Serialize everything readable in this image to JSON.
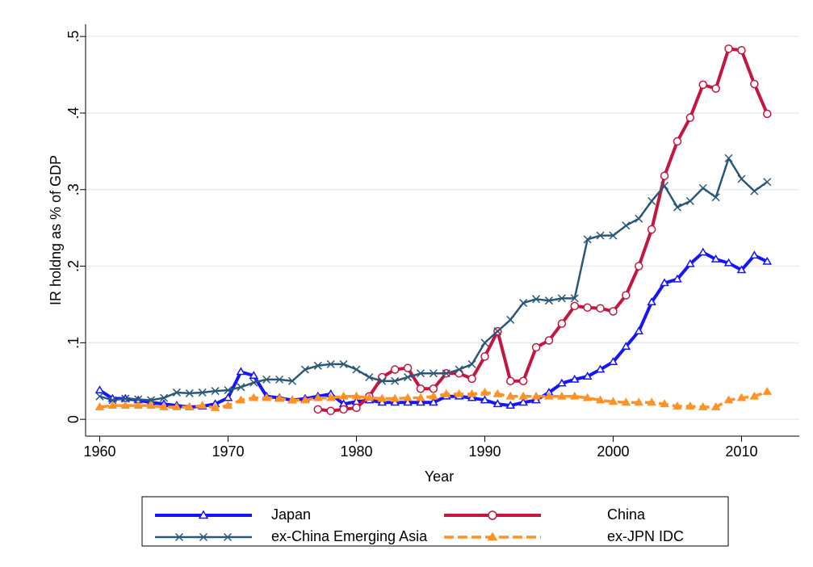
{
  "chart_data": {
    "type": "line",
    "x_label": "Year",
    "y_label": "IR holdng as % of GDP",
    "x": [
      1960,
      1961,
      1962,
      1963,
      1964,
      1965,
      1966,
      1967,
      1968,
      1969,
      1970,
      1971,
      1972,
      1973,
      1974,
      1975,
      1976,
      1977,
      1978,
      1979,
      1980,
      1981,
      1982,
      1983,
      1984,
      1985,
      1986,
      1987,
      1988,
      1989,
      1990,
      1991,
      1992,
      1993,
      1994,
      1995,
      1996,
      1997,
      1998,
      1999,
      2000,
      2001,
      2002,
      2003,
      2004,
      2005,
      2006,
      2007,
      2008,
      2009,
      2010,
      2011,
      2012
    ],
    "xlim": [
      1958.9,
      2014.5
    ],
    "xticks": [
      1960,
      1970,
      1980,
      1990,
      2000,
      2010
    ],
    "ylim": [
      -0.022,
      0.516
    ],
    "yticks": [
      0,
      {
        "value": 0.1,
        "label": ".1"
      },
      {
        "value": 0.2,
        "label": ".2"
      },
      {
        "value": 0.3,
        "label": ".3"
      },
      {
        "value": 0.4,
        "label": ".4"
      },
      {
        "value": 0.5,
        "label": ".5"
      }
    ],
    "grid": true,
    "series": [
      {
        "name": "Japan",
        "color": "#1414ff",
        "marker": "triangle",
        "dashed": false,
        "width": 4,
        "values": [
          0.038,
          0.027,
          0.027,
          0.025,
          0.022,
          0.02,
          0.018,
          0.016,
          0.017,
          0.02,
          0.028,
          0.062,
          0.057,
          0.03,
          0.028,
          0.025,
          0.027,
          0.03,
          0.033,
          0.02,
          0.023,
          0.025,
          0.022,
          0.022,
          0.022,
          0.022,
          0.022,
          0.03,
          0.03,
          0.028,
          0.025,
          0.02,
          0.018,
          0.022,
          0.025,
          0.035,
          0.047,
          0.052,
          0.056,
          0.065,
          0.075,
          0.095,
          0.115,
          0.153,
          0.178,
          0.183,
          0.203,
          0.218,
          0.209,
          0.204,
          0.195,
          0.214,
          0.206
        ]
      },
      {
        "name": "China",
        "color": "#c4163e",
        "marker": "circle",
        "dashed": false,
        "width": 4,
        "values": [
          null,
          null,
          null,
          null,
          null,
          null,
          null,
          null,
          null,
          null,
          null,
          null,
          null,
          null,
          null,
          null,
          null,
          0.013,
          0.011,
          0.013,
          0.015,
          0.03,
          0.055,
          0.065,
          0.067,
          0.04,
          0.04,
          0.06,
          0.06,
          0.053,
          0.082,
          0.115,
          0.05,
          0.05,
          0.094,
          0.103,
          0.125,
          0.148,
          0.146,
          0.145,
          0.141,
          0.162,
          0.2,
          0.248,
          0.318,
          0.363,
          0.394,
          0.437,
          0.432,
          0.484,
          0.482,
          0.438,
          0.399
        ]
      },
      {
        "name": "ex-China Emerging Asia",
        "color": "#2b5878",
        "marker": "x",
        "dashed": false,
        "width": 2.5,
        "values": [
          0.03,
          0.025,
          0.027,
          0.026,
          0.025,
          0.028,
          0.035,
          0.034,
          0.035,
          0.037,
          0.038,
          0.042,
          0.048,
          0.052,
          0.052,
          0.05,
          0.065,
          0.07,
          0.072,
          0.072,
          0.065,
          0.055,
          0.05,
          0.05,
          0.055,
          0.06,
          0.06,
          0.06,
          0.065,
          0.072,
          0.1,
          0.115,
          0.13,
          0.152,
          0.157,
          0.155,
          0.158,
          0.158,
          0.235,
          0.24,
          0.24,
          0.253,
          0.262,
          0.285,
          0.305,
          0.277,
          0.285,
          0.302,
          0.29,
          0.341,
          0.314,
          0.298,
          0.31
        ]
      },
      {
        "name": "ex-JPN IDC",
        "color": "#ff9225",
        "marker": "triangle",
        "dashed": true,
        "width": 3.5,
        "values": [
          0.016,
          0.018,
          0.018,
          0.018,
          0.018,
          0.016,
          0.016,
          0.016,
          0.018,
          0.015,
          0.018,
          0.025,
          0.028,
          0.028,
          0.027,
          0.025,
          0.025,
          0.028,
          0.028,
          0.03,
          0.03,
          0.028,
          0.027,
          0.027,
          0.028,
          0.028,
          0.03,
          0.033,
          0.033,
          0.033,
          0.035,
          0.033,
          0.03,
          0.03,
          0.03,
          0.03,
          0.03,
          0.03,
          0.028,
          0.025,
          0.023,
          0.022,
          0.022,
          0.022,
          0.02,
          0.017,
          0.017,
          0.016,
          0.016,
          0.025,
          0.028,
          0.03,
          0.036
        ]
      }
    ]
  }
}
